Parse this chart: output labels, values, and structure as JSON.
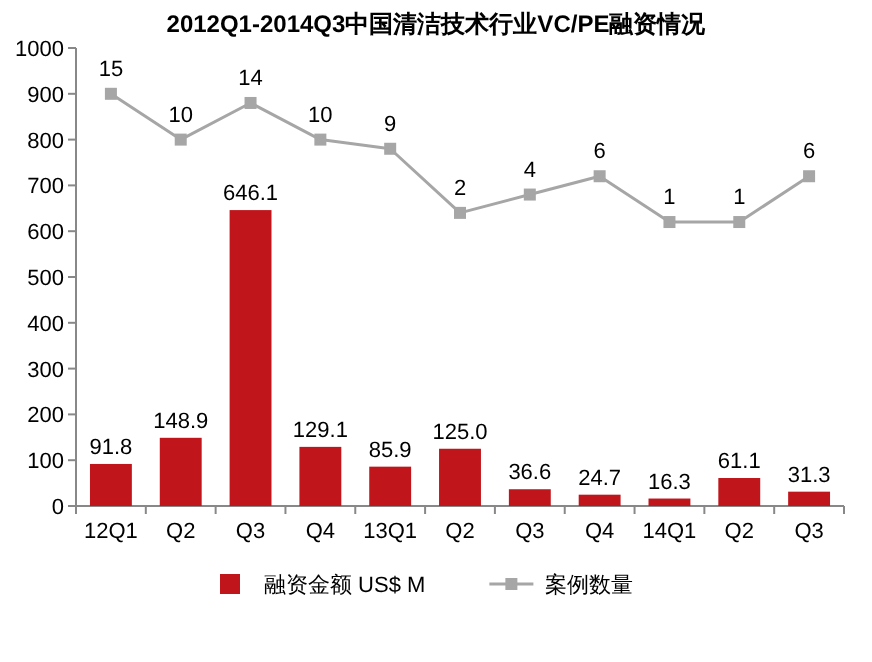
{
  "chart_data": {
    "type": "bar",
    "title": "2012Q1-2014Q3中国清洁技术行业VC/PE融资情况",
    "categories": [
      "12Q1",
      "Q2",
      "Q3",
      "Q4",
      "13Q1",
      "Q2",
      "Q3",
      "Q4",
      "14Q1",
      "Q2",
      "Q3"
    ],
    "series": [
      {
        "name": "融资金额 US$ M",
        "color": "#c0151b",
        "values": [
          91.8,
          148.9,
          646.1,
          129.1,
          85.9,
          125.0,
          36.6,
          24.7,
          16.3,
          61.1,
          31.3
        ],
        "value_labels": [
          "91.8",
          "148.9",
          "646.1",
          "129.1",
          "85.9",
          "125.0",
          "36.6",
          "24.7",
          "16.3",
          "61.1",
          "31.3"
        ]
      },
      {
        "name": "案例数量",
        "type": "line",
        "axis": "y2",
        "color": "#a6a6a6",
        "marker": "square",
        "values": [
          15,
          10,
          14,
          10,
          9,
          2,
          4,
          6,
          1,
          1,
          6
        ],
        "value_labels": [
          "15",
          "10",
          "14",
          "10",
          "9",
          "2",
          "4",
          "6",
          "1",
          "1",
          "6"
        ]
      }
    ],
    "ylim": [
      0,
      1000
    ],
    "yticks": [
      0,
      100,
      200,
      300,
      400,
      500,
      600,
      700,
      800,
      900,
      1000
    ],
    "y2lim": [
      -30,
      20
    ],
    "legend": "bottom",
    "grid": false
  }
}
